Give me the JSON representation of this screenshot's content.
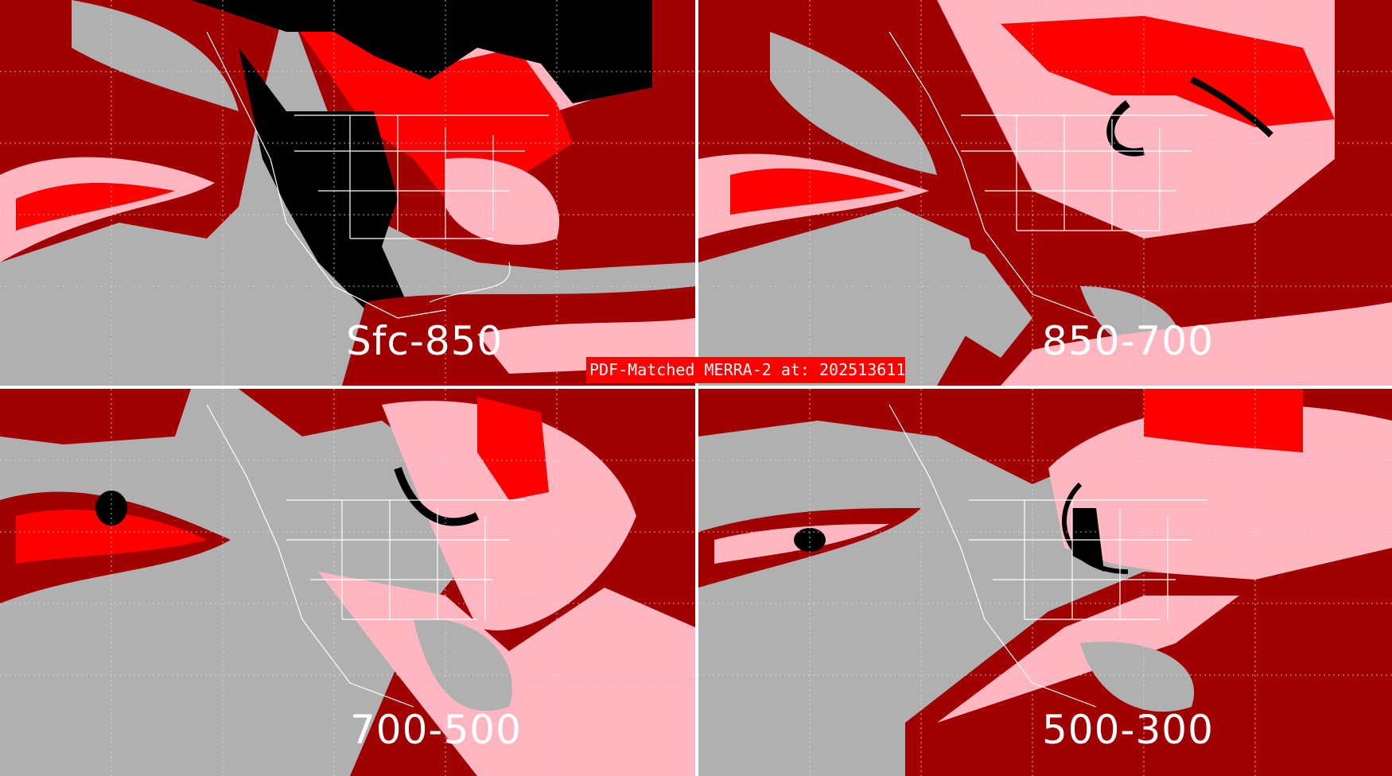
{
  "title": "PDF-Matched MERRA-2 at: 202513611",
  "panels": [
    {
      "label": "Sfc-850"
    },
    {
      "label": "850-700"
    },
    {
      "label": "700-500"
    },
    {
      "label": "500-300"
    }
  ],
  "colors": {
    "background": "#b0b0b0",
    "level1": "#a08080",
    "level2": "#a00000",
    "level3": "#ffb6c1",
    "level4": "#ff0000",
    "level5": "#000000",
    "coastlines": "#ffffff",
    "banner": "#ff0000"
  }
}
